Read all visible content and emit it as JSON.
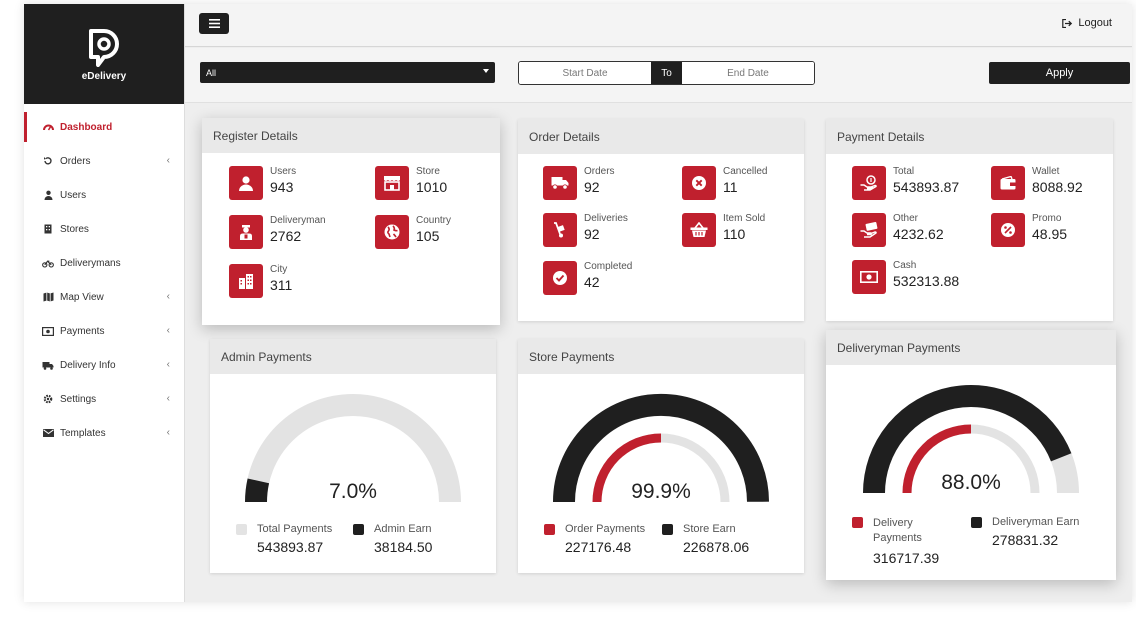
{
  "colors": {
    "accent": "#c0202e",
    "dark": "#1f1f1f",
    "track": "#e3e3e3"
  },
  "brand": {
    "name": "eDelivery",
    "logo_icon": "pin-d-logo-icon"
  },
  "sidebar": {
    "items": [
      {
        "label": "Dashboard",
        "icon": "dashboard-icon",
        "active": true,
        "submenu": false
      },
      {
        "label": "Orders",
        "icon": "history-icon",
        "submenu": true
      },
      {
        "label": "Users",
        "icon": "user-icon",
        "submenu": false
      },
      {
        "label": "Stores",
        "icon": "building-icon",
        "submenu": false
      },
      {
        "label": "Deliverymans",
        "icon": "bicycle-icon",
        "submenu": false
      },
      {
        "label": "Map View",
        "icon": "map-icon",
        "submenu": true
      },
      {
        "label": "Payments",
        "icon": "money-icon",
        "submenu": true
      },
      {
        "label": "Delivery Info",
        "icon": "truck-icon",
        "submenu": true
      },
      {
        "label": "Settings",
        "icon": "gear-icon",
        "submenu": true
      },
      {
        "label": "Templates",
        "icon": "envelope-icon",
        "submenu": true
      }
    ]
  },
  "topbar": {
    "logout_label": "Logout",
    "menu_icon": "hamburger-icon"
  },
  "filters": {
    "select_value": "All",
    "start_placeholder": "Start Date",
    "to_label": "To",
    "end_placeholder": "End Date",
    "apply_label": "Apply"
  },
  "register": {
    "title": "Register Details",
    "stats": [
      {
        "label": "Users",
        "value": "943",
        "icon": "user-icon"
      },
      {
        "label": "Store",
        "value": "1010",
        "icon": "store-icon"
      },
      {
        "label": "Deliveryman",
        "value": "2762",
        "icon": "deliveryman-icon"
      },
      {
        "label": "Country",
        "value": "105",
        "icon": "globe-icon"
      },
      {
        "label": "City",
        "value": "311",
        "icon": "city-icon"
      }
    ]
  },
  "orders": {
    "title": "Order Details",
    "stats": [
      {
        "label": "Orders",
        "value": "92",
        "icon": "truck-icon"
      },
      {
        "label": "Cancelled",
        "value": "11",
        "icon": "cancel-icon"
      },
      {
        "label": "Deliveries",
        "value": "92",
        "icon": "hand-truck-icon"
      },
      {
        "label": "Item Sold",
        "value": "110",
        "icon": "basket-icon"
      },
      {
        "label": "Completed",
        "value": "42",
        "icon": "check-icon"
      }
    ]
  },
  "payments": {
    "title": "Payment Details",
    "stats": [
      {
        "label": "Total",
        "value": "543893.87",
        "icon": "cash-hand-icon"
      },
      {
        "label": "Wallet",
        "value": "8088.92",
        "icon": "wallet-icon"
      },
      {
        "label": "Other",
        "value": "4232.62",
        "icon": "card-hand-icon"
      },
      {
        "label": "Promo",
        "value": "48.95",
        "icon": "percent-icon"
      },
      {
        "label": "Cash",
        "value": "532313.88",
        "icon": "banknote-icon"
      }
    ]
  },
  "admin_payments": {
    "title": "Admin Payments",
    "percent_text": "7.0%",
    "fraction": 0.07,
    "legend": [
      {
        "label": "Total Payments",
        "value": "543893.87",
        "color": "#e3e3e3"
      },
      {
        "label": "Admin Earn",
        "value": "38184.50",
        "color": "#1f1f1f"
      }
    ]
  },
  "store_payments": {
    "title": "Store Payments",
    "percent_text": "99.9%",
    "outer_fraction": 0.999,
    "inner_fraction": 0.5,
    "legend": [
      {
        "label": "Order Payments",
        "value": "227176.48",
        "color": "#c0202e"
      },
      {
        "label": "Store Earn",
        "value": "226878.06",
        "color": "#1f1f1f"
      }
    ]
  },
  "deliveryman_payments": {
    "title": "Deliveryman Payments",
    "percent_text": "88.0%",
    "outer_fraction": 0.88,
    "inner_fraction": 0.5,
    "legend": [
      {
        "label": "Delivery Payments",
        "value": "316717.39",
        "color": "#c0202e"
      },
      {
        "label": "Deliveryman Earn",
        "value": "278831.32",
        "color": "#1f1f1f"
      }
    ]
  }
}
